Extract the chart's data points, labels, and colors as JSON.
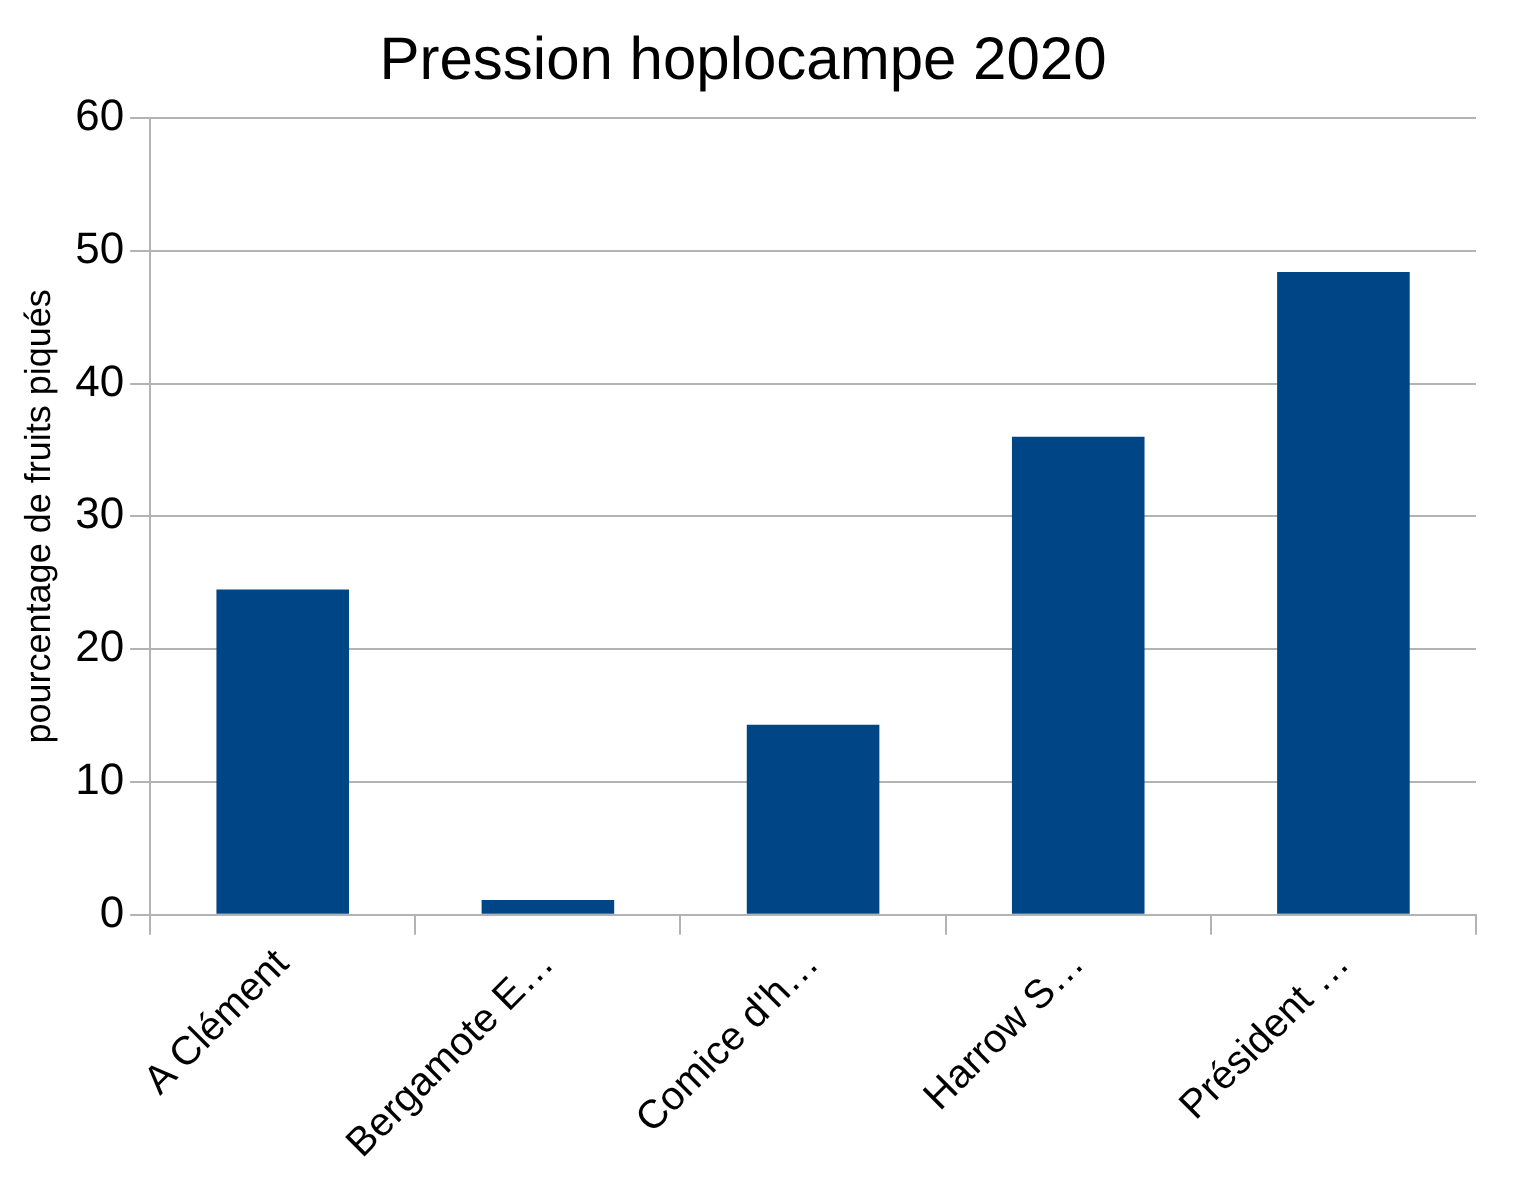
{
  "chart_data": {
    "type": "bar",
    "title": "Pression hoplocampe 2020",
    "ylabel": "pourcentage de fruits piqués",
    "categories": [
      "A Clément",
      "Bergamote E…",
      "Comice d'h…",
      "Harrow S…",
      "Président …"
    ],
    "values": [
      24.5,
      1.1,
      14.3,
      36.0,
      48.4
    ],
    "color": "#004586",
    "ylim": [
      0,
      60
    ],
    "yticks": [
      0,
      10,
      20,
      30,
      40,
      50,
      60
    ],
    "grid": "y"
  }
}
